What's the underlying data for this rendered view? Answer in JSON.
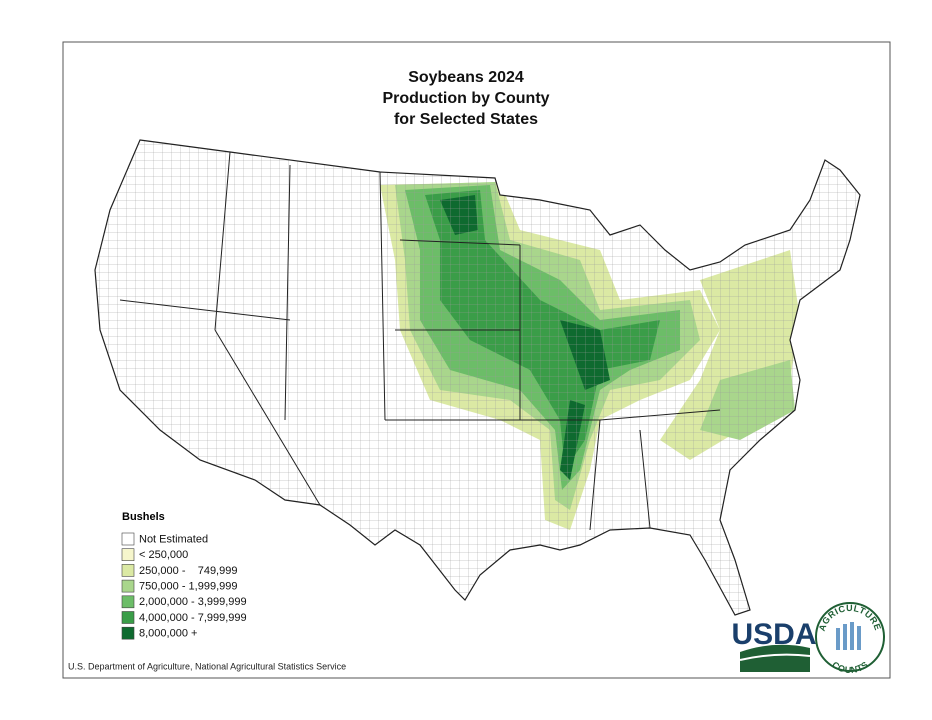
{
  "title": [
    "Soybeans 2024",
    "Production by County",
    "for Selected States"
  ],
  "legend": {
    "title": "Bushels",
    "items": [
      {
        "label": "Not Estimated",
        "color": "#ffffff"
      },
      {
        "label": "< 250,000",
        "color": "#f6f6cc"
      },
      {
        "label": "250,000 -    749,999",
        "color": "#dbe9a4"
      },
      {
        "label": "750,000 - 1,999,999",
        "color": "#a9d68c"
      },
      {
        "label": "2,000,000 - 3,999,999",
        "color": "#6cbd68"
      },
      {
        "label": "4,000,000 - 7,999,999",
        "color": "#3a9d48"
      },
      {
        "label": "8,000,000 +",
        "color": "#0e6a2f"
      }
    ]
  },
  "footer": "U.S. Department of Agriculture, National Agricultural Statistics Service",
  "logo": {
    "text": "USDA",
    "seal_top": "AGRICULTURE",
    "seal_bottom": "COUNTS"
  }
}
